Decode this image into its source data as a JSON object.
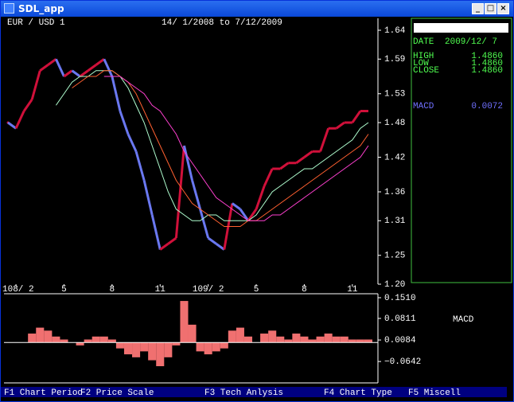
{
  "window": {
    "title": "SDL_app"
  },
  "chart_data": [
    {
      "type": "line",
      "title": "EUR / USD 1",
      "subtitle": "14/ 1/2008  to  7/12/2009",
      "x": [
        0.5,
        1,
        1.5,
        2,
        2.5,
        3,
        3.5,
        4,
        4.5,
        5,
        5.5,
        6,
        6.5,
        7,
        7.5,
        8,
        8.5,
        9,
        9.5,
        10,
        10.5,
        11,
        11.5,
        12,
        12.5,
        13,
        13.5,
        14,
        14.5,
        15,
        15.5,
        16,
        16.5,
        17,
        17.5,
        18,
        18.5,
        19,
        19.5,
        20,
        20.5,
        21,
        21.5,
        22,
        22.5,
        23
      ],
      "xlim": [
        0.45,
        23.2
      ],
      "xticks": [
        {
          "value": 1,
          "label": "108/ 2"
        },
        {
          "value": 4,
          "label": "5"
        },
        {
          "value": 7,
          "label": "8"
        },
        {
          "value": 10,
          "label": "11"
        },
        {
          "value": 13,
          "label": "109/ 2"
        },
        {
          "value": 16,
          "label": "5"
        },
        {
          "value": 19,
          "label": "8"
        },
        {
          "value": 22,
          "label": "11"
        }
      ],
      "ylim": [
        1.2,
        1.64
      ],
      "yticks": [
        1.64,
        1.59,
        1.53,
        1.48,
        1.42,
        1.36,
        1.31,
        1.25,
        {
          "value": 1.2,
          "label": "1.20"
        }
      ],
      "series": [
        {
          "up_color": "#d0103a",
          "down_color": "#6a78f0",
          "values": [
            1.48,
            1.47,
            1.5,
            1.52,
            1.57,
            1.58,
            1.59,
            1.56,
            1.57,
            1.56,
            1.57,
            1.58,
            1.59,
            1.56,
            1.5,
            1.46,
            1.43,
            1.38,
            1.32,
            1.26,
            1.27,
            1.28,
            1.44,
            1.38,
            1.33,
            1.28,
            1.27,
            1.26,
            1.34,
            1.33,
            1.31,
            1.33,
            1.37,
            1.4,
            1.4,
            1.41,
            1.41,
            1.42,
            1.43,
            1.43,
            1.47,
            1.47,
            1.48,
            1.48,
            1.5,
            1.5
          ]
        },
        {
          "color": "#b0ffd0",
          "values": [
            null,
            null,
            null,
            null,
            null,
            null,
            1.51,
            1.53,
            1.55,
            1.56,
            1.56,
            1.57,
            1.57,
            1.57,
            1.56,
            1.54,
            1.51,
            1.48,
            1.44,
            1.4,
            1.36,
            1.33,
            1.32,
            1.31,
            1.31,
            1.32,
            1.32,
            1.31,
            1.31,
            1.31,
            1.31,
            1.32,
            1.34,
            1.36,
            1.37,
            1.38,
            1.39,
            1.4,
            1.4,
            1.41,
            1.42,
            1.43,
            1.44,
            1.45,
            1.47,
            1.48
          ]
        },
        {
          "color": "#ff6030",
          "values": [
            null,
            null,
            null,
            null,
            null,
            null,
            null,
            null,
            1.54,
            1.55,
            1.56,
            1.56,
            1.57,
            1.57,
            1.56,
            1.55,
            1.53,
            1.5,
            1.47,
            1.44,
            1.41,
            1.38,
            1.36,
            1.34,
            1.33,
            1.32,
            1.31,
            1.3,
            1.3,
            1.3,
            1.31,
            1.31,
            1.32,
            1.33,
            1.34,
            1.35,
            1.36,
            1.37,
            1.38,
            1.39,
            1.4,
            1.41,
            1.42,
            1.43,
            1.44,
            1.46
          ]
        },
        {
          "color": "#ff40d0",
          "values": [
            null,
            null,
            null,
            null,
            null,
            null,
            null,
            null,
            null,
            null,
            null,
            null,
            1.56,
            1.56,
            1.56,
            1.55,
            1.54,
            1.53,
            1.51,
            1.5,
            1.48,
            1.46,
            1.43,
            1.41,
            1.39,
            1.37,
            1.35,
            1.34,
            1.33,
            1.32,
            1.31,
            1.31,
            1.31,
            1.32,
            1.32,
            1.33,
            1.34,
            1.35,
            1.36,
            1.37,
            1.38,
            1.39,
            1.4,
            1.41,
            1.42,
            1.44
          ]
        }
      ]
    },
    {
      "type": "bar",
      "x": [
        0.5,
        1,
        1.5,
        2,
        2.5,
        3,
        3.5,
        4,
        4.5,
        5,
        5.5,
        6,
        6.5,
        7,
        7.5,
        8,
        8.5,
        9,
        9.5,
        10,
        10.5,
        11,
        11.5,
        12,
        12.5,
        13,
        13.5,
        14,
        14.5,
        15,
        15.5,
        16,
        16.5,
        17,
        17.5,
        18,
        18.5,
        19,
        19.5,
        20,
        20.5,
        21,
        21.5,
        22,
        22.5,
        23
      ],
      "xlim": [
        0.45,
        23.2
      ],
      "ylim": [
        -0.131,
        0.159
      ],
      "yticks": [
        {
          "value": 0.151,
          "label": "0.1510"
        },
        {
          "value": 0.0811,
          "label": "0.0811"
        },
        {
          "value": 0.0084,
          "label": "0.0084"
        },
        {
          "value": -0.0642,
          "label": "−0.0642"
        }
      ],
      "series": [
        {
          "name": "MACD",
          "color": "#f07070",
          "values": [
            null,
            null,
            0.0,
            0.03,
            0.05,
            0.04,
            0.02,
            0.01,
            0.0,
            -0.01,
            0.01,
            0.02,
            0.02,
            0.01,
            -0.02,
            -0.04,
            -0.05,
            -0.03,
            -0.06,
            -0.08,
            -0.05,
            -0.01,
            0.14,
            0.06,
            -0.03,
            -0.04,
            -0.03,
            -0.02,
            0.04,
            0.05,
            0.02,
            0.0,
            0.03,
            0.04,
            0.02,
            0.01,
            0.03,
            0.02,
            0.01,
            0.02,
            0.03,
            0.02,
            0.02,
            0.01,
            0.01,
            0.01
          ]
        }
      ]
    }
  ],
  "info": {
    "date_label": "DATE",
    "date": "2009/12/ 7",
    "high_label": "HIGH",
    "high": "1.4860",
    "low_label": "LOW",
    "low": "1.4860",
    "close_label": "CLOSE",
    "close": "1.4860",
    "macd_label": "MACD",
    "macd": "0.0072"
  },
  "menu": [
    "F1 Chart Period",
    "F2 Price Scale",
    "F3 Tech Anlysis",
    "F4 Chart Type",
    "F5 Miscell"
  ]
}
